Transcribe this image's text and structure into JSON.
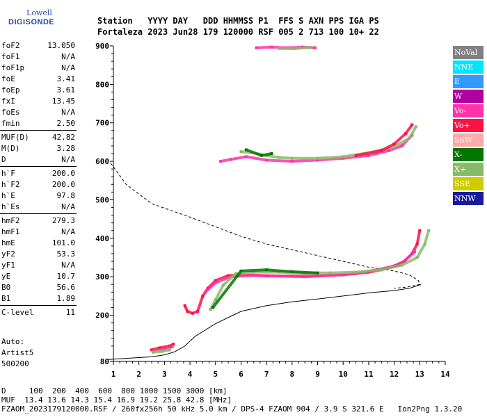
{
  "logo": {
    "line1": "Lowell",
    "line2": "DIGISONDE"
  },
  "header": {
    "labels": [
      "Station",
      "YYYY",
      "DAY",
      "DDD",
      "HHMMSS",
      "P1",
      "FFS",
      "S",
      "AXN",
      "PPS",
      "IGA",
      "PS"
    ],
    "values": [
      "Fortaleza",
      "2023",
      "Jun28",
      "179",
      "120000",
      "RSF",
      "005",
      "2",
      "713",
      "100",
      "10+",
      "22"
    ]
  },
  "params": [
    {
      "group": [
        {
          "k": "foF2",
          "v": "13.050"
        },
        {
          "k": "foF1",
          "v": "N/A"
        },
        {
          "k": "foF1p",
          "v": "N/A"
        },
        {
          "k": "foE",
          "v": "3.41"
        },
        {
          "k": "foEp",
          "v": "3.61"
        },
        {
          "k": "fxI",
          "v": "13.45"
        },
        {
          "k": "foEs",
          "v": "N/A"
        },
        {
          "k": "fmin",
          "v": "2.50"
        }
      ]
    },
    {
      "group": [
        {
          "k": "MUF(D)",
          "v": "42.82"
        },
        {
          "k": "M(D)",
          "v": "3.28"
        },
        {
          "k": "D",
          "v": "N/A"
        }
      ]
    },
    {
      "group": [
        {
          "k": "h`F",
          "v": "200.0"
        },
        {
          "k": "h`F2",
          "v": "200.0"
        },
        {
          "k": "h`E",
          "v": "97.8"
        },
        {
          "k": "h`Es",
          "v": "N/A"
        }
      ]
    },
    {
      "group": [
        {
          "k": "hmF2",
          "v": "279.3"
        },
        {
          "k": "hmF1",
          "v": "N/A"
        },
        {
          "k": "hmE",
          "v": "101.0"
        },
        {
          "k": "yF2",
          "v": "53.3"
        },
        {
          "k": "yF1",
          "v": "N/A"
        },
        {
          "k": "yE",
          "v": "10.7"
        },
        {
          "k": "B0",
          "v": "56.6"
        },
        {
          "k": "B1",
          "v": "1.89"
        }
      ]
    },
    {
      "group": [
        {
          "k": "C-level",
          "v": "11"
        }
      ]
    }
  ],
  "auto": {
    "line1": "Auto:",
    "line2": "Artist5",
    "line3": "500200"
  },
  "legend": [
    {
      "label": "NoVal",
      "color": "#808080"
    },
    {
      "label": "NNE",
      "color": "#00e5ff"
    },
    {
      "label": "E",
      "color": "#3399ff"
    },
    {
      "label": "W",
      "color": "#b000a0"
    },
    {
      "label": "Vo-",
      "color": "#ff33aa"
    },
    {
      "label": "Vo+",
      "color": "#ff1144"
    },
    {
      "label": "SSW",
      "color": "#ffaaaa"
    },
    {
      "label": "X-",
      "color": "#007700"
    },
    {
      "label": "X+",
      "color": "#88bb66"
    },
    {
      "label": "SSE",
      "color": "#cccc00"
    },
    {
      "label": "NNW",
      "color": "#1a1aa0"
    }
  ],
  "bottom": {
    "d_line": "D     100  200  400  600  800 1000 1500 3000 [km]",
    "muf_line": "MUF  13.4 13.6 14.3 15.4 16.9 19.2 25.8 42.8 [MHz]",
    "footer": "FZAOM_2023179120000.RSF / 260fx256h 50 kHz 5.0 km / DPS-4 FZAOM 904 / 3.9 S 321.6 E   Ion2Png 1.3.20"
  },
  "chart_data": {
    "type": "scatter",
    "xlim": [
      1,
      14
    ],
    "ylim": [
      80,
      900
    ],
    "xticks": [
      1,
      2,
      3,
      4,
      5,
      6,
      7,
      8,
      9,
      10,
      11,
      12,
      13,
      14
    ],
    "yticks": [
      80,
      200,
      300,
      400,
      500,
      600,
      700,
      800,
      900
    ],
    "grid": false,
    "legend_position": "right",
    "traces": [
      {
        "color": "#ff1144",
        "points": [
          [
            2.5,
            110
          ],
          [
            2.8,
            115
          ],
          [
            3.2,
            120
          ],
          [
            3.35,
            125
          ]
        ]
      },
      {
        "color": "#ff33aa",
        "points": [
          [
            2.6,
            108
          ],
          [
            3.0,
            112
          ],
          [
            3.3,
            118
          ]
        ]
      },
      {
        "color": "#88bb66",
        "points": [
          [
            2.55,
            104
          ],
          [
            2.9,
            106
          ],
          [
            3.2,
            110
          ]
        ]
      },
      {
        "color": "#ff1144",
        "points": [
          [
            3.8,
            225
          ],
          [
            3.9,
            210
          ],
          [
            4.1,
            205
          ],
          [
            4.3,
            210
          ],
          [
            4.5,
            250
          ],
          [
            4.7,
            270
          ],
          [
            5.0,
            290
          ],
          [
            5.5,
            303
          ],
          [
            6.0,
            305
          ],
          [
            7.0,
            302
          ],
          [
            8.0,
            302
          ],
          [
            9.0,
            302
          ],
          [
            10.0,
            305
          ],
          [
            11.0,
            312
          ],
          [
            11.5,
            318
          ],
          [
            12.0,
            328
          ],
          [
            12.4,
            340
          ],
          [
            12.7,
            360
          ],
          [
            12.9,
            385
          ],
          [
            13.0,
            420
          ]
        ]
      },
      {
        "color": "#ff33aa",
        "points": [
          [
            4.6,
            260
          ],
          [
            5.0,
            285
          ],
          [
            5.6,
            300
          ],
          [
            6.5,
            304
          ],
          [
            8.5,
            300
          ],
          [
            10.5,
            308
          ],
          [
            12.2,
            330
          ],
          [
            12.8,
            365
          ]
        ]
      },
      {
        "color": "#88bb66",
        "points": [
          [
            4.8,
            215
          ],
          [
            5.0,
            240
          ],
          [
            5.3,
            278
          ],
          [
            5.8,
            308
          ],
          [
            6.5,
            312
          ],
          [
            7.5,
            312
          ],
          [
            8.5,
            310
          ],
          [
            9.5,
            310
          ],
          [
            10.5,
            312
          ],
          [
            11.5,
            318
          ],
          [
            12.3,
            330
          ],
          [
            12.9,
            350
          ],
          [
            13.2,
            385
          ],
          [
            13.35,
            420
          ]
        ]
      },
      {
        "color": "#007700",
        "points": [
          [
            4.9,
            220
          ],
          [
            6.0,
            315
          ],
          [
            7.0,
            318
          ],
          [
            8.0,
            313
          ],
          [
            9.0,
            310
          ]
        ]
      },
      {
        "color": "#ff33aa",
        "points": [
          [
            5.2,
            600
          ],
          [
            5.6,
            605
          ],
          [
            6.2,
            612
          ],
          [
            7.0,
            603
          ],
          [
            8.0,
            600
          ],
          [
            9.0,
            603
          ],
          [
            10.0,
            608
          ],
          [
            11.0,
            615
          ],
          [
            11.8,
            628
          ],
          [
            12.3,
            640
          ],
          [
            12.7,
            668
          ]
        ]
      },
      {
        "color": "#88bb66",
        "points": [
          [
            6.0,
            625
          ],
          [
            6.5,
            622
          ],
          [
            7.0,
            615
          ],
          [
            7.5,
            610
          ],
          [
            8.0,
            608
          ],
          [
            9.0,
            608
          ],
          [
            10.0,
            612
          ],
          [
            11.0,
            622
          ],
          [
            12.0,
            638
          ],
          [
            12.6,
            660
          ],
          [
            12.85,
            690
          ]
        ]
      },
      {
        "color": "#ff1144",
        "points": [
          [
            10.5,
            615
          ],
          [
            11.5,
            628
          ],
          [
            12.0,
            645
          ],
          [
            12.45,
            672
          ],
          [
            12.7,
            695
          ]
        ]
      },
      {
        "color": "#007700",
        "points": [
          [
            6.2,
            630
          ],
          [
            6.8,
            615
          ],
          [
            7.2,
            620
          ]
        ]
      },
      {
        "color": "#ff33aa",
        "points": [
          [
            6.6,
            895
          ],
          [
            7.2,
            897
          ],
          [
            7.8,
            895
          ],
          [
            8.4,
            897
          ],
          [
            8.9,
            895
          ]
        ]
      },
      {
        "color": "#88bb66",
        "points": [
          [
            7.5,
            893
          ],
          [
            8.1,
            893
          ],
          [
            8.7,
            896
          ]
        ]
      }
    ],
    "profile_solid": [
      [
        0.8,
        85
      ],
      [
        1.5,
        88
      ],
      [
        2.5,
        92
      ],
      [
        3.0,
        97
      ],
      [
        3.4,
        105
      ],
      [
        3.8,
        120
      ],
      [
        4.2,
        145
      ],
      [
        5.0,
        178
      ],
      [
        6.0,
        210
      ],
      [
        7.0,
        225
      ],
      [
        8.0,
        235
      ],
      [
        9.0,
        242
      ],
      [
        10.0,
        250
      ],
      [
        11.0,
        258
      ],
      [
        12.0,
        264
      ],
      [
        12.6,
        270
      ],
      [
        12.95,
        278
      ],
      [
        13.05,
        279.3
      ]
    ],
    "profile_dashed": [
      [
        0.9,
        595
      ],
      [
        1.5,
        540
      ],
      [
        2.5,
        490
      ],
      [
        4.0,
        455
      ],
      [
        5.0,
        430
      ],
      [
        6.0,
        405
      ],
      [
        7.0,
        385
      ],
      [
        8.0,
        370
      ],
      [
        9.0,
        355
      ],
      [
        10.0,
        340
      ],
      [
        11.0,
        325
      ],
      [
        12.0,
        315
      ],
      [
        12.6,
        305
      ],
      [
        12.95,
        290
      ],
      [
        13.0,
        280
      ],
      [
        12.5,
        273
      ],
      [
        12.0,
        270
      ]
    ]
  }
}
